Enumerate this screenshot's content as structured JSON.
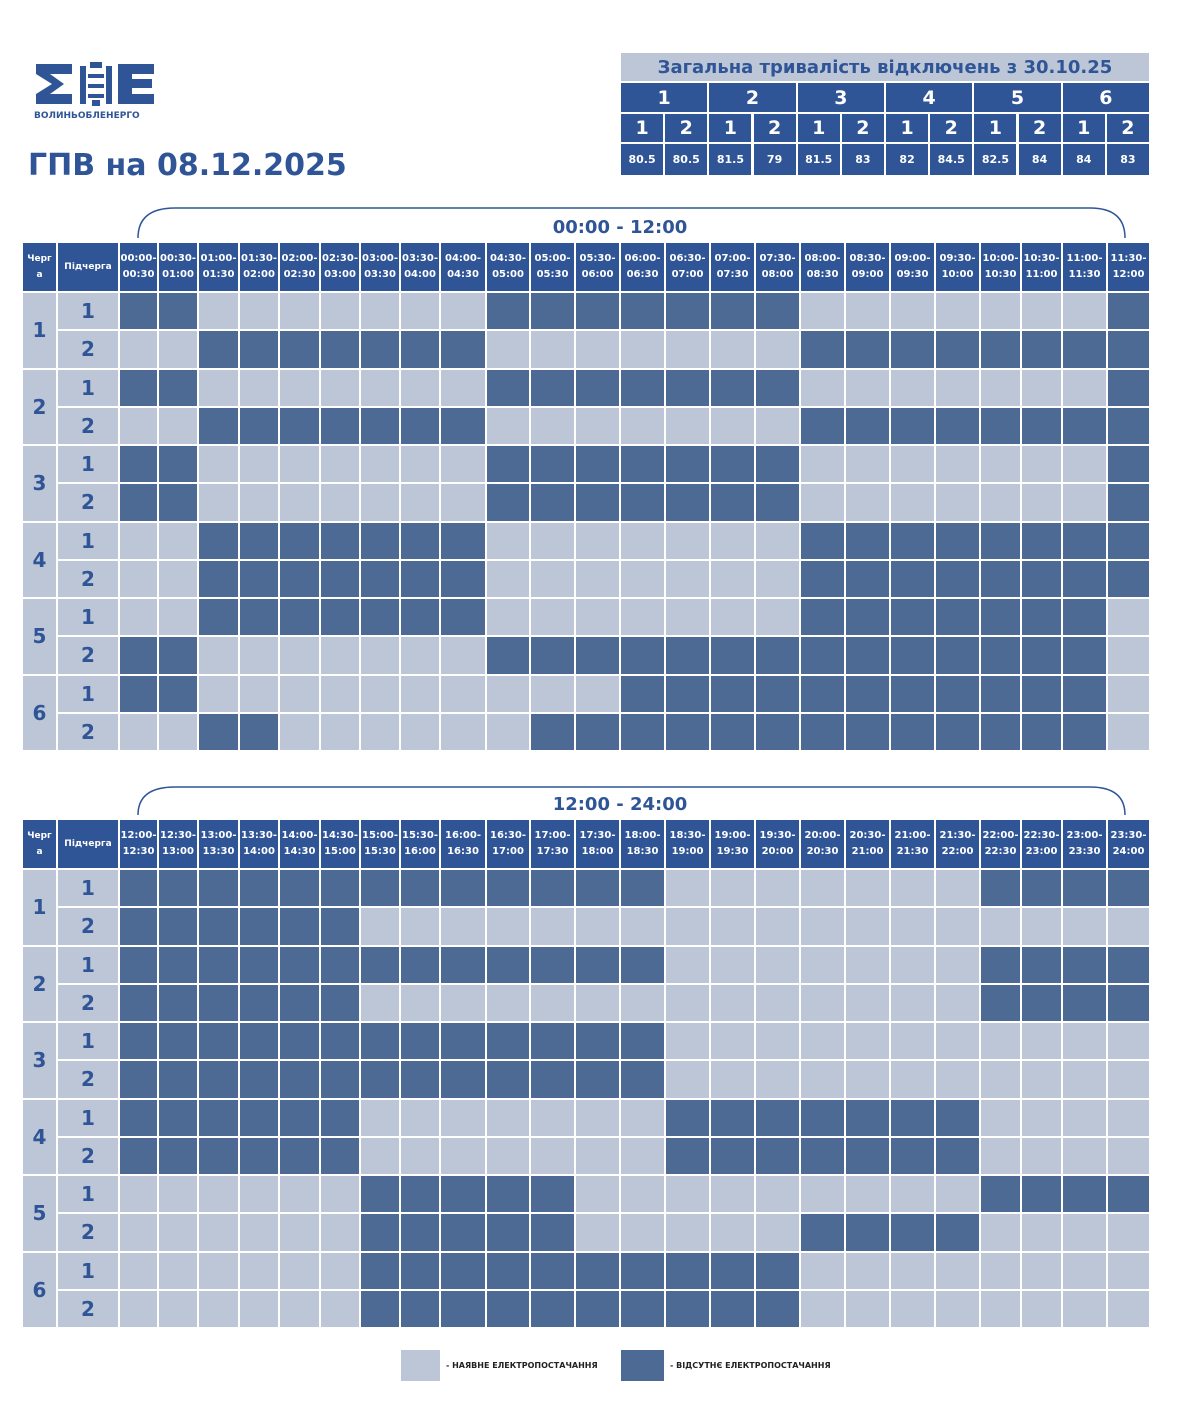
{
  "header": {
    "logo_text": "ВОЛИНЬОБЛЕНЕРГО",
    "title": "ГПВ на 08.12.2025"
  },
  "summary": {
    "title": "Загальна тривалість відключень з 30.10.25",
    "queues": [
      {
        "queue": 1,
        "subqueues": [
          {
            "subqueue": 1,
            "value": 80.5
          },
          {
            "subqueue": 2,
            "value": 80.5
          }
        ]
      },
      {
        "queue": 2,
        "subqueues": [
          {
            "subqueue": 1,
            "value": 81.5
          },
          {
            "subqueue": 2,
            "value": 79
          }
        ]
      },
      {
        "queue": 3,
        "subqueues": [
          {
            "subqueue": 1,
            "value": 81.5
          },
          {
            "subqueue": 2,
            "value": 83
          }
        ]
      },
      {
        "queue": 4,
        "subqueues": [
          {
            "subqueue": 1,
            "value": 82
          },
          {
            "subqueue": 2,
            "value": 84.5
          }
        ]
      },
      {
        "queue": 5,
        "subqueues": [
          {
            "subqueue": 1,
            "value": 82.5
          },
          {
            "subqueue": 2,
            "value": 84
          }
        ]
      },
      {
        "queue": 6,
        "subqueues": [
          {
            "subqueue": 1,
            "value": 84
          },
          {
            "subqueue": 2,
            "value": 83
          }
        ]
      }
    ]
  },
  "schedules": [
    {
      "period": "00:00 - 12:00",
      "queue_header": "Черга",
      "subqueue_header": "Підчерга",
      "slots": [
        {
          "from": "00:00-",
          "to": "00:30"
        },
        {
          "from": "00:30-",
          "to": "01:00"
        },
        {
          "from": "01:00-",
          "to": "01:30"
        },
        {
          "from": "01:30-",
          "to": "02:00"
        },
        {
          "from": "02:00-",
          "to": "02:30"
        },
        {
          "from": "02:30-",
          "to": "03:00"
        },
        {
          "from": "03:00-",
          "to": "03:30"
        },
        {
          "from": "03:30-",
          "to": "04:00"
        },
        {
          "from": "04:00-",
          "to": "04:30"
        },
        {
          "from": "04:30-",
          "to": "05:00"
        },
        {
          "from": "05:00-",
          "to": "05:30"
        },
        {
          "from": "05:30-",
          "to": "06:00"
        },
        {
          "from": "06:00-",
          "to": "06:30"
        },
        {
          "from": "06:30-",
          "to": "07:00"
        },
        {
          "from": "07:00-",
          "to": "07:30"
        },
        {
          "from": "07:30-",
          "to": "08:00"
        },
        {
          "from": "08:00-",
          "to": "08:30"
        },
        {
          "from": "08:30-",
          "to": "09:00"
        },
        {
          "from": "09:00-",
          "to": "09:30"
        },
        {
          "from": "09:30-",
          "to": "10:00"
        },
        {
          "from": "10:00-",
          "to": "10:30"
        },
        {
          "from": "10:30-",
          "to": "11:00"
        },
        {
          "from": "11:00-",
          "to": "11:30"
        },
        {
          "from": "11:30-",
          "to": "12:00"
        }
      ],
      "queues": [
        {
          "queue": 1,
          "subqueues": [
            {
              "subqueue": 1,
              "outage": [
                1,
                1,
                0,
                0,
                0,
                0,
                0,
                0,
                0,
                1,
                1,
                1,
                1,
                1,
                1,
                1,
                0,
                0,
                0,
                0,
                0,
                0,
                0,
                1
              ]
            },
            {
              "subqueue": 2,
              "outage": [
                0,
                0,
                1,
                1,
                1,
                1,
                1,
                1,
                1,
                0,
                0,
                0,
                0,
                0,
                0,
                0,
                1,
                1,
                1,
                1,
                1,
                1,
                1,
                1
              ]
            }
          ]
        },
        {
          "queue": 2,
          "subqueues": [
            {
              "subqueue": 1,
              "outage": [
                1,
                1,
                0,
                0,
                0,
                0,
                0,
                0,
                0,
                1,
                1,
                1,
                1,
                1,
                1,
                1,
                0,
                0,
                0,
                0,
                0,
                0,
                0,
                1
              ]
            },
            {
              "subqueue": 2,
              "outage": [
                0,
                0,
                1,
                1,
                1,
                1,
                1,
                1,
                1,
                0,
                0,
                0,
                0,
                0,
                0,
                0,
                1,
                1,
                1,
                1,
                1,
                1,
                1,
                1
              ]
            }
          ]
        },
        {
          "queue": 3,
          "subqueues": [
            {
              "subqueue": 1,
              "outage": [
                1,
                1,
                0,
                0,
                0,
                0,
                0,
                0,
                0,
                1,
                1,
                1,
                1,
                1,
                1,
                1,
                0,
                0,
                0,
                0,
                0,
                0,
                0,
                1
              ]
            },
            {
              "subqueue": 2,
              "outage": [
                1,
                1,
                0,
                0,
                0,
                0,
                0,
                0,
                0,
                1,
                1,
                1,
                1,
                1,
                1,
                1,
                0,
                0,
                0,
                0,
                0,
                0,
                0,
                1
              ]
            }
          ]
        },
        {
          "queue": 4,
          "subqueues": [
            {
              "subqueue": 1,
              "outage": [
                0,
                0,
                1,
                1,
                1,
                1,
                1,
                1,
                1,
                0,
                0,
                0,
                0,
                0,
                0,
                0,
                1,
                1,
                1,
                1,
                1,
                1,
                1,
                1
              ]
            },
            {
              "subqueue": 2,
              "outage": [
                0,
                0,
                1,
                1,
                1,
                1,
                1,
                1,
                1,
                0,
                0,
                0,
                0,
                0,
                0,
                0,
                1,
                1,
                1,
                1,
                1,
                1,
                1,
                1
              ]
            }
          ]
        },
        {
          "queue": 5,
          "subqueues": [
            {
              "subqueue": 1,
              "outage": [
                0,
                0,
                1,
                1,
                1,
                1,
                1,
                1,
                1,
                0,
                0,
                0,
                0,
                0,
                0,
                0,
                1,
                1,
                1,
                1,
                1,
                1,
                1,
                0
              ]
            },
            {
              "subqueue": 2,
              "outage": [
                1,
                1,
                0,
                0,
                0,
                0,
                0,
                0,
                0,
                1,
                1,
                1,
                1,
                1,
                1,
                1,
                1,
                1,
                1,
                1,
                1,
                1,
                1,
                0
              ]
            }
          ]
        },
        {
          "queue": 6,
          "subqueues": [
            {
              "subqueue": 1,
              "outage": [
                1,
                1,
                0,
                0,
                0,
                0,
                0,
                0,
                0,
                0,
                0,
                0,
                1,
                1,
                1,
                1,
                1,
                1,
                1,
                1,
                1,
                1,
                1,
                0
              ]
            },
            {
              "subqueue": 2,
              "outage": [
                0,
                0,
                1,
                1,
                0,
                0,
                0,
                0,
                0,
                0,
                1,
                1,
                1,
                1,
                1,
                1,
                1,
                1,
                1,
                1,
                1,
                1,
                1,
                0
              ]
            }
          ]
        }
      ]
    },
    {
      "period": "12:00 - 24:00",
      "queue_header": "Черга",
      "subqueue_header": "Підчерга",
      "slots": [
        {
          "from": "12:00-",
          "to": "12:30"
        },
        {
          "from": "12:30-",
          "to": "13:00"
        },
        {
          "from": "13:00-",
          "to": "13:30"
        },
        {
          "from": "13:30-",
          "to": "14:00"
        },
        {
          "from": "14:00-",
          "to": "14:30"
        },
        {
          "from": "14:30-",
          "to": "15:00"
        },
        {
          "from": "15:00-",
          "to": "15:30"
        },
        {
          "from": "15:30-",
          "to": "16:00"
        },
        {
          "from": "16:00-",
          "to": "16:30"
        },
        {
          "from": "16:30-",
          "to": "17:00"
        },
        {
          "from": "17:00-",
          "to": "17:30"
        },
        {
          "from": "17:30-",
          "to": "18:00"
        },
        {
          "from": "18:00-",
          "to": "18:30"
        },
        {
          "from": "18:30-",
          "to": "19:00"
        },
        {
          "from": "19:00-",
          "to": "19:30"
        },
        {
          "from": "19:30-",
          "to": "20:00"
        },
        {
          "from": "20:00-",
          "to": "20:30"
        },
        {
          "from": "20:30-",
          "to": "21:00"
        },
        {
          "from": "21:00-",
          "to": "21:30"
        },
        {
          "from": "21:30-",
          "to": "22:00"
        },
        {
          "from": "22:00-",
          "to": "22:30"
        },
        {
          "from": "22:30-",
          "to": "23:00"
        },
        {
          "from": "23:00-",
          "to": "23:30"
        },
        {
          "from": "23:30-",
          "to": "24:00"
        }
      ],
      "queues": [
        {
          "queue": 1,
          "subqueues": [
            {
              "subqueue": 1,
              "outage": [
                1,
                1,
                1,
                1,
                1,
                1,
                1,
                1,
                1,
                1,
                1,
                1,
                1,
                0,
                0,
                0,
                0,
                0,
                0,
                0,
                1,
                1,
                1,
                1
              ]
            },
            {
              "subqueue": 2,
              "outage": [
                1,
                1,
                1,
                1,
                1,
                1,
                0,
                0,
                0,
                0,
                0,
                0,
                0,
                0,
                0,
                0,
                0,
                0,
                0,
                0,
                0,
                0,
                0,
                0
              ]
            }
          ]
        },
        {
          "queue": 2,
          "subqueues": [
            {
              "subqueue": 1,
              "outage": [
                1,
                1,
                1,
                1,
                1,
                1,
                1,
                1,
                1,
                1,
                1,
                1,
                1,
                0,
                0,
                0,
                0,
                0,
                0,
                0,
                1,
                1,
                1,
                1
              ]
            },
            {
              "subqueue": 2,
              "outage": [
                1,
                1,
                1,
                1,
                1,
                1,
                0,
                0,
                0,
                0,
                0,
                0,
                0,
                0,
                0,
                0,
                0,
                0,
                0,
                0,
                1,
                1,
                1,
                1
              ]
            }
          ]
        },
        {
          "queue": 3,
          "subqueues": [
            {
              "subqueue": 1,
              "outage": [
                1,
                1,
                1,
                1,
                1,
                1,
                1,
                1,
                1,
                1,
                1,
                1,
                1,
                0,
                0,
                0,
                0,
                0,
                0,
                0,
                0,
                0,
                0,
                0
              ]
            },
            {
              "subqueue": 2,
              "outage": [
                1,
                1,
                1,
                1,
                1,
                1,
                1,
                1,
                1,
                1,
                1,
                1,
                1,
                0,
                0,
                0,
                0,
                0,
                0,
                0,
                0,
                0,
                0,
                0
              ]
            }
          ]
        },
        {
          "queue": 4,
          "subqueues": [
            {
              "subqueue": 1,
              "outage": [
                1,
                1,
                1,
                1,
                1,
                1,
                0,
                0,
                0,
                0,
                0,
                0,
                0,
                1,
                1,
                1,
                1,
                1,
                1,
                1,
                0,
                0,
                0,
                0
              ]
            },
            {
              "subqueue": 2,
              "outage": [
                1,
                1,
                1,
                1,
                1,
                1,
                0,
                0,
                0,
                0,
                0,
                0,
                0,
                1,
                1,
                1,
                1,
                1,
                1,
                1,
                0,
                0,
                0,
                0
              ]
            }
          ]
        },
        {
          "queue": 5,
          "subqueues": [
            {
              "subqueue": 1,
              "outage": [
                0,
                0,
                0,
                0,
                0,
                0,
                1,
                1,
                1,
                1,
                1,
                0,
                0,
                0,
                0,
                0,
                0,
                0,
                0,
                0,
                1,
                1,
                1,
                1
              ]
            },
            {
              "subqueue": 2,
              "outage": [
                0,
                0,
                0,
                0,
                0,
                0,
                1,
                1,
                1,
                1,
                1,
                0,
                0,
                0,
                0,
                0,
                1,
                1,
                1,
                1,
                0,
                0,
                0,
                0
              ]
            }
          ]
        },
        {
          "queue": 6,
          "subqueues": [
            {
              "subqueue": 1,
              "outage": [
                0,
                0,
                0,
                0,
                0,
                0,
                1,
                1,
                1,
                1,
                1,
                1,
                1,
                1,
                1,
                1,
                0,
                0,
                0,
                0,
                0,
                0,
                0,
                0
              ]
            },
            {
              "subqueue": 2,
              "outage": [
                0,
                0,
                0,
                0,
                0,
                0,
                1,
                1,
                1,
                1,
                1,
                1,
                1,
                1,
                1,
                1,
                0,
                0,
                0,
                0,
                0,
                0,
                0,
                0
              ]
            }
          ]
        }
      ]
    }
  ],
  "legend": {
    "available": "- НАЯВНЕ ЕЛЕКТРОПОСТАЧАННЯ",
    "absent": "- ВІДСУТНЄ ЕЛЕКТРОПОСТАЧАННЯ"
  }
}
